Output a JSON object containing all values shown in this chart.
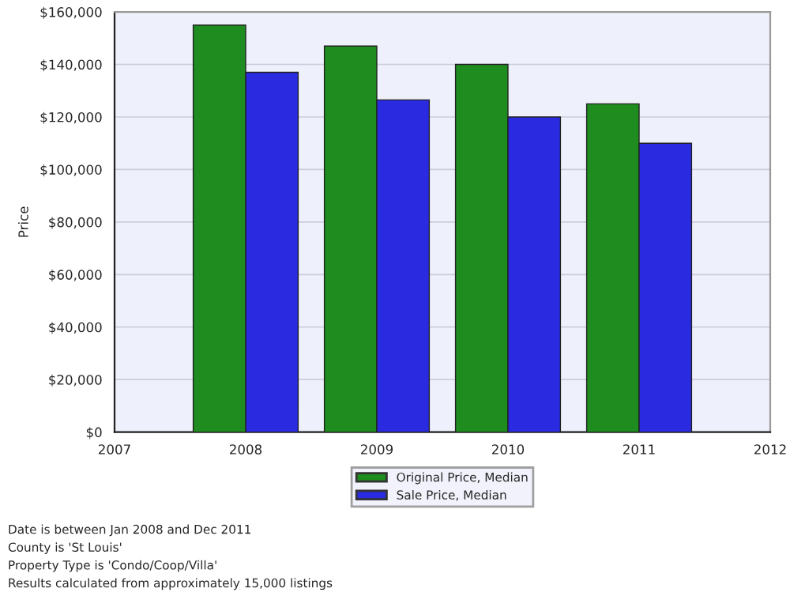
{
  "chart_data": {
    "type": "bar",
    "ylabel": "Price",
    "x": [
      2008,
      2009,
      2010,
      2011
    ],
    "series": [
      {
        "name": "Original Price, Median",
        "color": "#1e8c1e",
        "values": [
          155000,
          147000,
          140000,
          125000
        ]
      },
      {
        "name": "Sale Price, Median",
        "color": "#2a2ae0",
        "values": [
          137000,
          126500,
          120000,
          110000
        ]
      }
    ],
    "xlim": [
      2007,
      2012
    ],
    "xticks": [
      2007,
      2008,
      2009,
      2010,
      2011,
      2012
    ],
    "ylim": [
      0,
      160000
    ],
    "yticks": [
      {
        "value": 0,
        "label": "$0"
      },
      {
        "value": 20000,
        "label": "$20,000"
      },
      {
        "value": 40000,
        "label": "$40,000"
      },
      {
        "value": 60000,
        "label": "$60,000"
      },
      {
        "value": 80000,
        "label": "$80,000"
      },
      {
        "value": 100000,
        "label": "$100,000"
      },
      {
        "value": 120000,
        "label": "$120,000"
      },
      {
        "value": 140000,
        "label": "$140,000"
      },
      {
        "value": 160000,
        "label": "$160,000"
      }
    ],
    "grid": "y",
    "legend": "bottom",
    "annotations": [
      "Date is between Jan 2008 and Dec 2011",
      "County is 'St Louis'",
      "Property Type is 'Condo/Coop/Villa'",
      "Results calculated from approximately 15,000 listings"
    ]
  }
}
